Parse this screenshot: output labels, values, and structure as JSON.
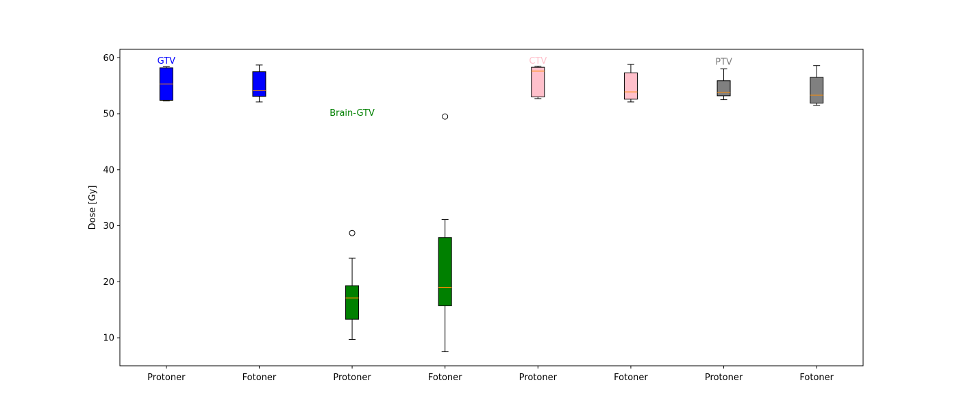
{
  "chart_data": {
    "type": "box",
    "title": "",
    "xlabel": "",
    "ylabel": "Dose [Gy]",
    "ylim": [
      5,
      61.5
    ],
    "yticks": [
      10,
      20,
      30,
      40,
      50,
      60
    ],
    "grid": false,
    "categories": [
      "Protoner",
      "Fotoner",
      "Protoner",
      "Fotoner",
      "Protoner",
      "Fotoner",
      "Protoner",
      "Fotoner"
    ],
    "groups": [
      {
        "label": "GTV",
        "color": "#0000ff",
        "label_y": 59.5,
        "label_at": 0
      },
      {
        "label": "Brain-GTV",
        "color": "#008000",
        "label_y": 50.2,
        "label_at": 2
      },
      {
        "label": "CTV",
        "color": "#ffc0cb",
        "label_y": 59.5,
        "label_at": 4
      },
      {
        "label": "PTV",
        "color": "#808080",
        "label_y": 59.3,
        "label_at": 6
      }
    ],
    "boxes": [
      {
        "group": 0,
        "whislo": 52.3,
        "q1": 52.4,
        "med": 55.3,
        "q3": 58.2,
        "whishi": 58.4,
        "fliers": []
      },
      {
        "group": 0,
        "whislo": 52.1,
        "q1": 53.1,
        "med": 54.1,
        "q3": 57.5,
        "whishi": 58.7,
        "fliers": []
      },
      {
        "group": 1,
        "whislo": 9.7,
        "q1": 13.3,
        "med": 17.1,
        "q3": 19.3,
        "whishi": 24.2,
        "fliers": [
          28.7
        ]
      },
      {
        "group": 1,
        "whislo": 7.5,
        "q1": 15.7,
        "med": 19.0,
        "q3": 27.9,
        "whishi": 31.1,
        "fliers": [
          49.5
        ]
      },
      {
        "group": 2,
        "whislo": 52.7,
        "q1": 53.0,
        "med": 57.6,
        "q3": 58.3,
        "whishi": 58.5,
        "fliers": []
      },
      {
        "group": 2,
        "whislo": 52.1,
        "q1": 52.6,
        "med": 53.9,
        "q3": 57.3,
        "whishi": 58.8,
        "fliers": []
      },
      {
        "group": 3,
        "whislo": 52.5,
        "q1": 53.2,
        "med": 53.8,
        "q3": 55.9,
        "whishi": 58.0,
        "fliers": []
      },
      {
        "group": 3,
        "whislo": 51.5,
        "q1": 51.9,
        "med": 53.3,
        "q3": 56.5,
        "whishi": 58.6,
        "fliers": []
      }
    ],
    "median_color": "#ff8c00"
  }
}
